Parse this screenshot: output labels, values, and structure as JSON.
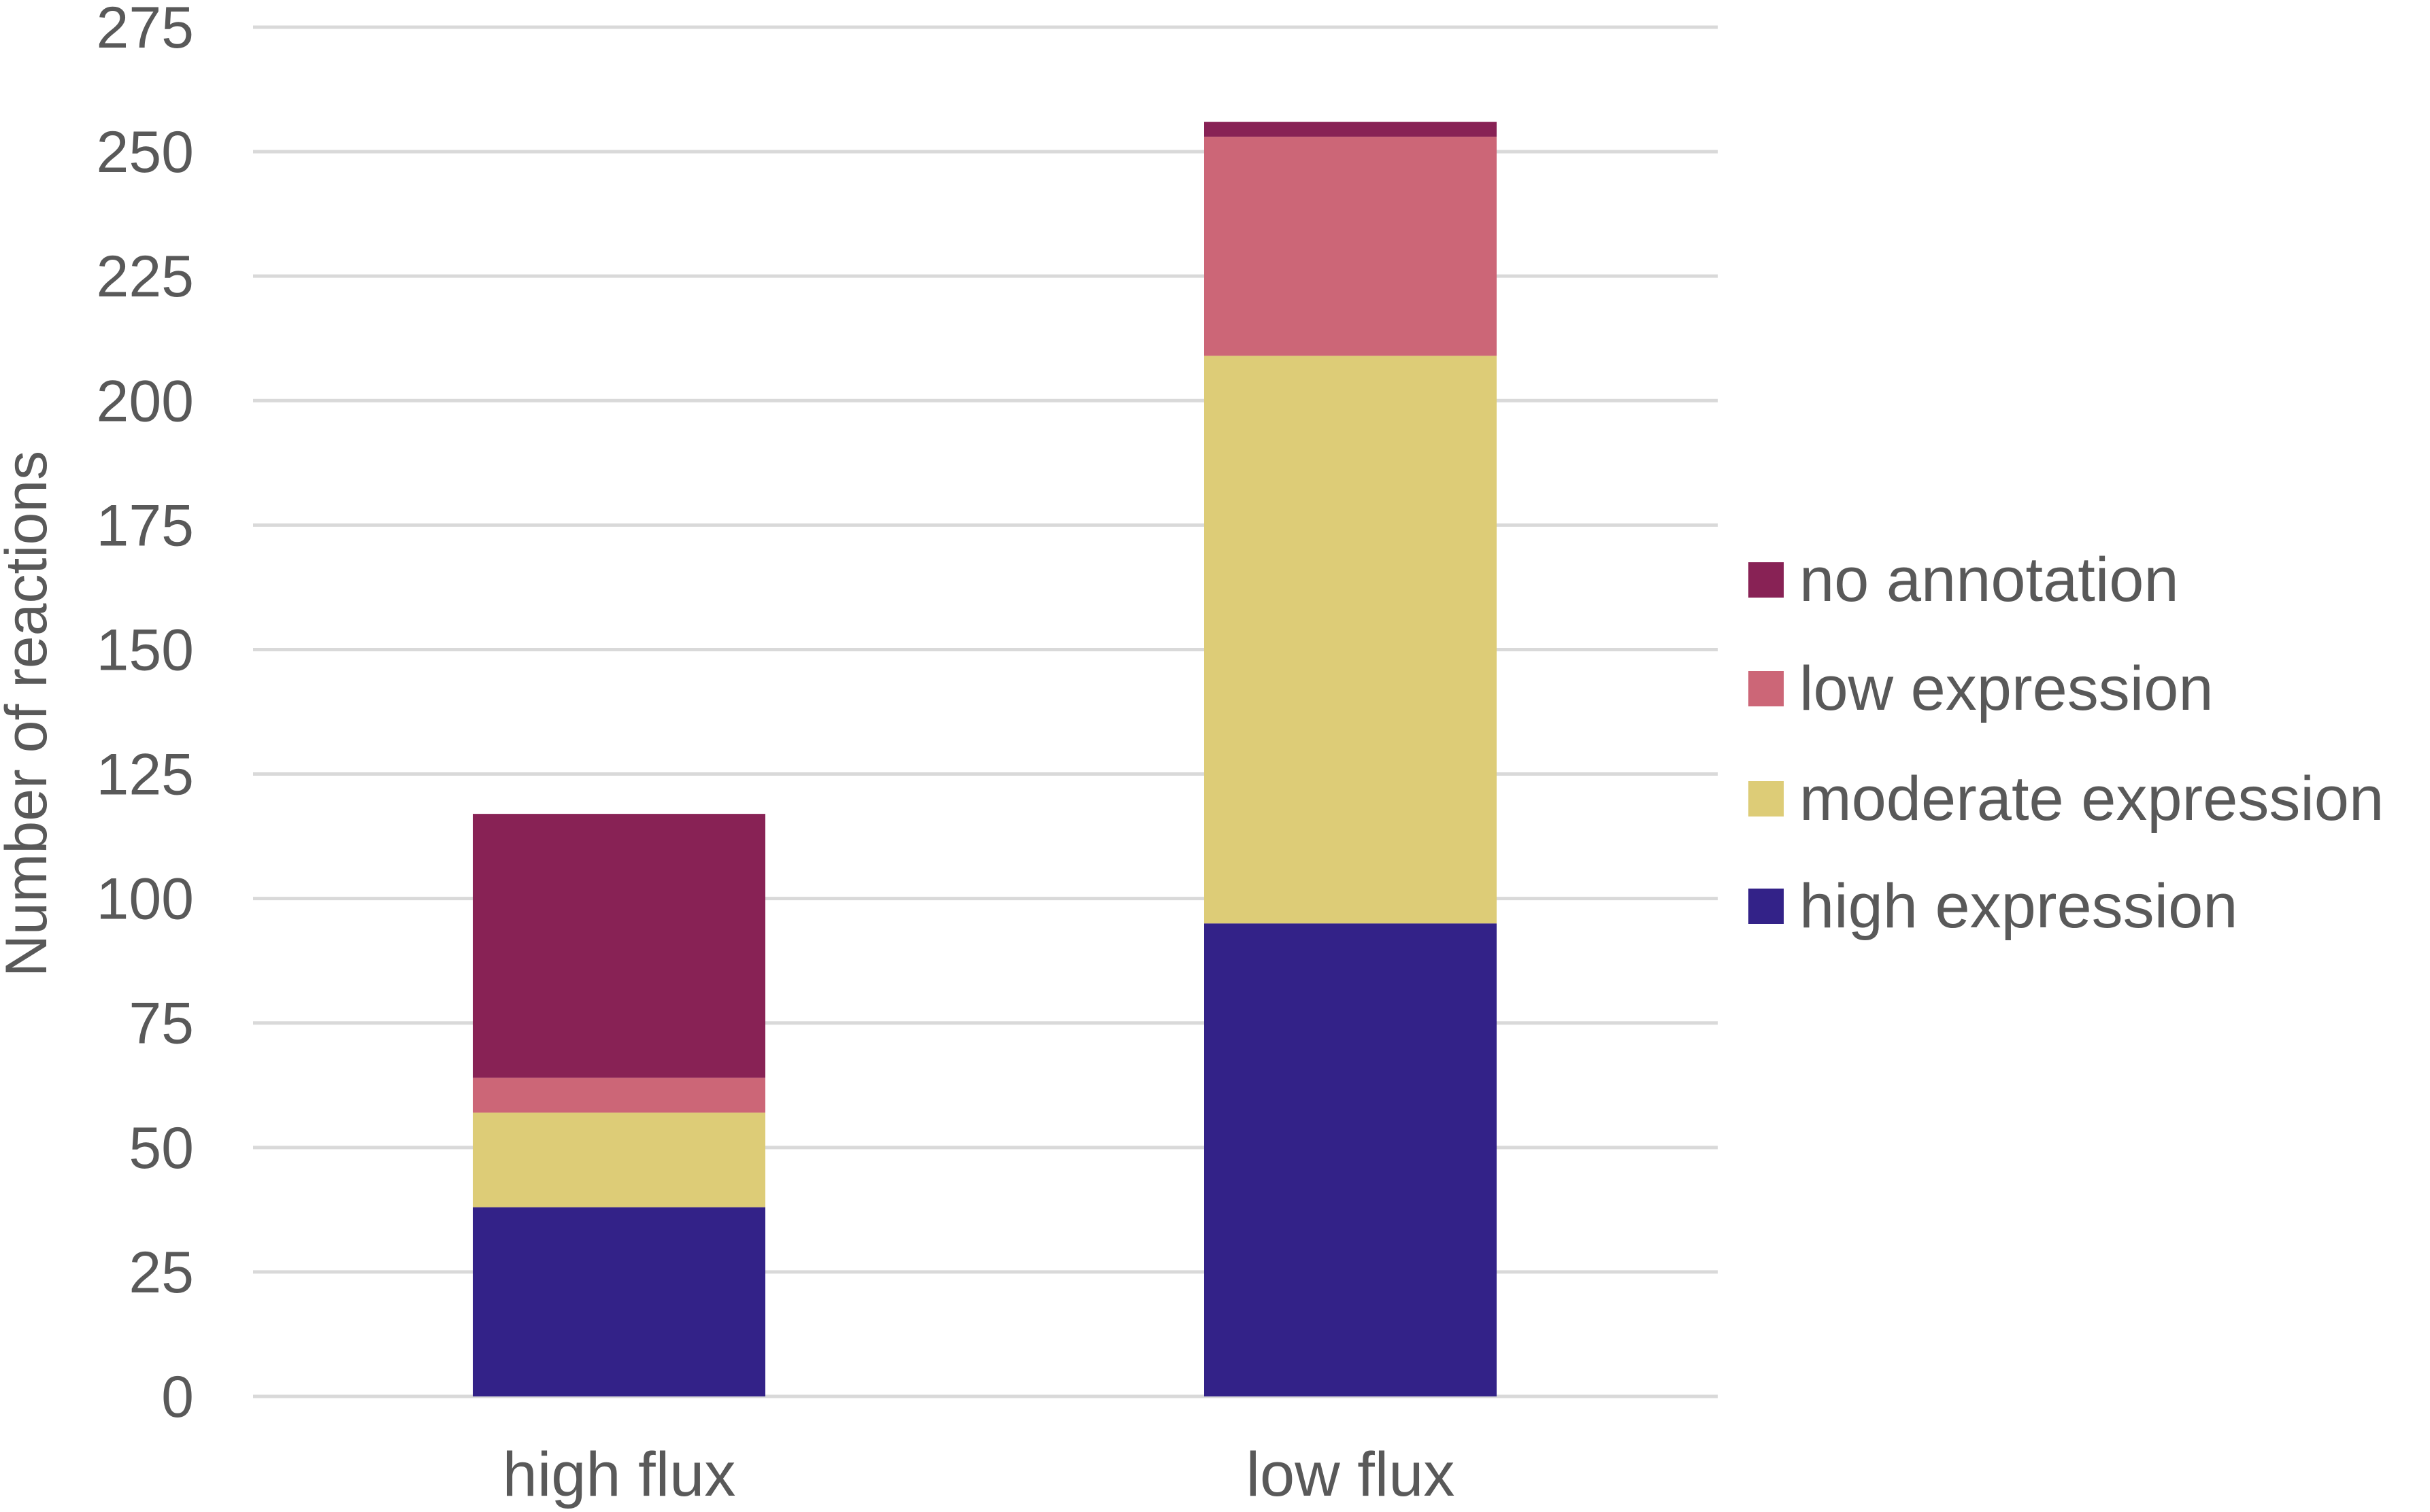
{
  "chart_data": {
    "type": "bar",
    "stacked": true,
    "title": "",
    "xlabel": "",
    "ylabel": "Number of reactions",
    "ylim": [
      0,
      275
    ],
    "yticks": [
      "0",
      "25",
      "50",
      "75",
      "100",
      "125",
      "150",
      "175",
      "200",
      "225",
      "250",
      "275"
    ],
    "grid": true,
    "legend_position": "right",
    "categories": [
      "high flux",
      "low flux"
    ],
    "series": [
      {
        "name": "high expression",
        "color": "#332288",
        "values": [
          38,
          95
        ]
      },
      {
        "name": "moderate expression",
        "color": "#DDCC77",
        "values": [
          19,
          114
        ]
      },
      {
        "name": "low expression",
        "color": "#CC6677",
        "values": [
          7,
          44
        ]
      },
      {
        "name": "no annotation",
        "color": "#882255",
        "values": [
          53,
          3
        ]
      }
    ],
    "legend_order": [
      "no annotation",
      "low expression",
      "moderate expression",
      "high expression"
    ]
  }
}
